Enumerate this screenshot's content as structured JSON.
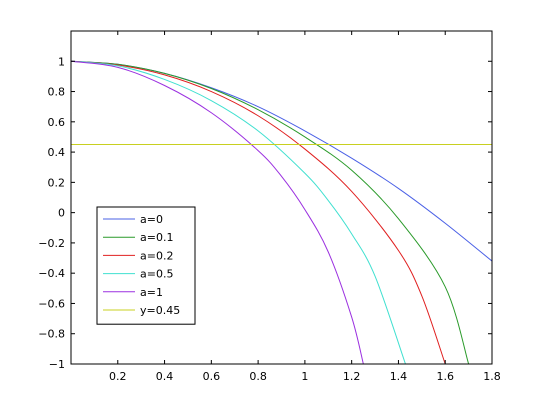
{
  "chart_data": {
    "type": "line",
    "xlim": [
      0,
      1.8
    ],
    "ylim": [
      -1,
      1.2
    ],
    "x_ticks": [
      "0.2",
      "0.4",
      "0.6",
      "0.8",
      "1",
      "1.2",
      "1.4",
      "1.6",
      "1.8"
    ],
    "y_ticks": [
      "−1",
      "−0.8",
      "−0.6",
      "−0.4",
      "−0.2",
      "0",
      "0.2",
      "0.4",
      "0.6",
      "0.8",
      "1"
    ],
    "grid": false,
    "legend_position": "lower-left",
    "series": [
      {
        "name": "a=0",
        "color": "#4a60e6",
        "x": [
          0,
          0.2,
          0.4,
          0.6,
          0.8,
          1.0,
          1.2,
          1.4,
          1.6,
          1.8
        ],
        "y": [
          1,
          0.98,
          0.92,
          0.825,
          0.7,
          0.54,
          0.36,
          0.16,
          -0.07,
          -0.32
        ]
      },
      {
        "name": "a=0.1",
        "color": "#2a9a2a",
        "x": [
          0,
          0.2,
          0.4,
          0.6,
          0.8,
          1.0,
          1.2,
          1.4,
          1.6,
          1.7
        ],
        "y": [
          1,
          0.98,
          0.92,
          0.82,
          0.68,
          0.5,
          0.28,
          -0.04,
          -0.49,
          -1.0
        ]
      },
      {
        "name": "a=0.2",
        "color": "#e02020",
        "x": [
          0,
          0.2,
          0.4,
          0.6,
          0.8,
          1.0,
          1.2,
          1.4,
          1.5,
          1.6
        ],
        "y": [
          1,
          0.975,
          0.91,
          0.8,
          0.64,
          0.42,
          0.14,
          -0.25,
          -0.55,
          -1.0
        ]
      },
      {
        "name": "a=0.5",
        "color": "#40e0d0",
        "x": [
          0,
          0.2,
          0.4,
          0.6,
          0.8,
          1.0,
          1.1,
          1.2,
          1.3,
          1.43
        ],
        "y": [
          1,
          0.97,
          0.88,
          0.74,
          0.54,
          0.26,
          0.08,
          -0.14,
          -0.42,
          -1.0
        ]
      },
      {
        "name": "a=1",
        "color": "#9b30e0",
        "x": [
          0,
          0.2,
          0.4,
          0.6,
          0.8,
          0.9,
          1.0,
          1.1,
          1.2,
          1.25
        ],
        "y": [
          1,
          0.96,
          0.84,
          0.66,
          0.41,
          0.24,
          0.02,
          -0.26,
          -0.69,
          -1.0
        ]
      },
      {
        "name": "y=0.45",
        "color": "#c8d020",
        "x": [
          0,
          1.8
        ],
        "y": [
          0.45,
          0.45
        ]
      }
    ]
  }
}
